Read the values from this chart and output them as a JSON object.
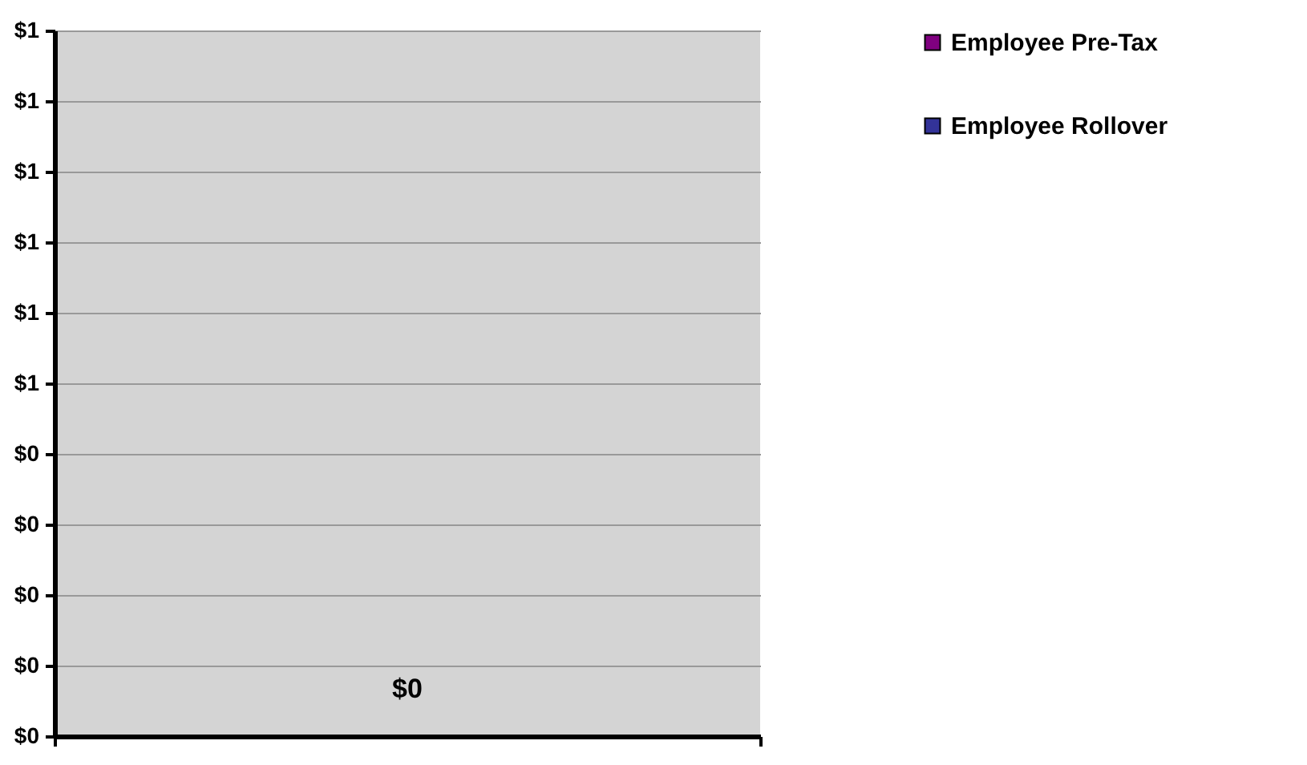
{
  "chart_data": {
    "type": "bar",
    "categories": [
      null
    ],
    "series": [
      {
        "name": "Employee Pre-Tax",
        "color": "#800080",
        "values": [
          0
        ]
      },
      {
        "name": "Employee Rollover",
        "color": "#333399",
        "values": [
          0
        ]
      }
    ],
    "totals": [
      "$0"
    ],
    "ylim": [
      0,
      1
    ],
    "yticks": [
      {
        "value": 0,
        "label": "$0"
      },
      {
        "value": 0.1,
        "label": "$0"
      },
      {
        "value": 0.2,
        "label": "$0"
      },
      {
        "value": 0.3,
        "label": "$0"
      },
      {
        "value": 0.4,
        "label": "$0"
      },
      {
        "value": 0.5,
        "label": "$1"
      },
      {
        "value": 0.6,
        "label": "$1"
      },
      {
        "value": 0.7,
        "label": "$1"
      },
      {
        "value": 0.8,
        "label": "$1"
      },
      {
        "value": 0.9,
        "label": "$1"
      },
      {
        "value": 1,
        "label": "$1"
      }
    ],
    "grid": "y",
    "legend": "right"
  }
}
